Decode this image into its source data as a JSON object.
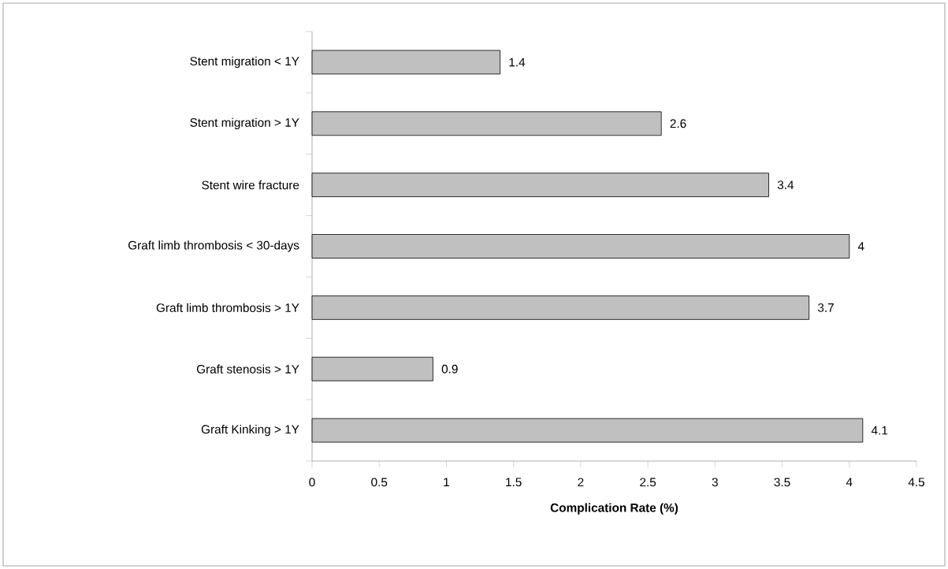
{
  "chart_data": {
    "type": "bar",
    "orientation": "horizontal",
    "xlabel": "Complication Rate (%)",
    "categories": [
      "Stent migration < 1Y",
      "Stent migration > 1Y",
      "Stent wire fracture",
      "Graft limb thrombosis < 30-days",
      "Graft limb thrombosis > 1Y",
      "Graft stenosis > 1Y",
      "Graft Kinking > 1Y"
    ],
    "values": [
      1.4,
      2.6,
      3.4,
      4,
      3.7,
      0.9,
      4.1
    ],
    "color": "#c0c0c0",
    "xlim": [
      0,
      4.5
    ],
    "xticks": [
      0,
      0.5,
      1,
      1.5,
      2,
      2.5,
      3,
      3.5,
      4,
      4.5
    ],
    "data_labels": true,
    "grid": false
  }
}
